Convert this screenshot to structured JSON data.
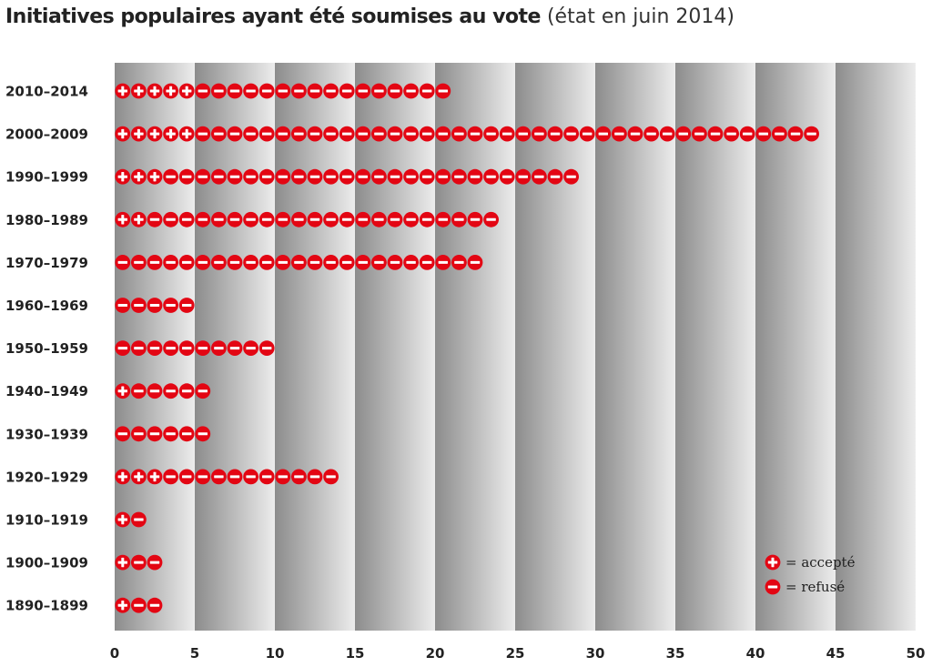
{
  "title": {
    "main": "Initiatives populaires ayant été soumises au vote",
    "sub": "(état en juin 2014)"
  },
  "colors": {
    "accent": "#e30613",
    "band_dark": "#8c8c8c",
    "band_light": "#ececec",
    "text": "#222222"
  },
  "legend": {
    "accepted_label": "= accepté",
    "refused_label": "= refusé",
    "accepted_icon": "plus-circle-icon",
    "refused_icon": "minus-circle-icon"
  },
  "chart_data": {
    "type": "bar",
    "orientation": "horizontal",
    "categories": [
      "2010–2014",
      "2000–2009",
      "1990–1999",
      "1980–1989",
      "1970–1979",
      "1960–1969",
      "1950–1959",
      "1940–1949",
      "1930–1939",
      "1920–1929",
      "1910–1919",
      "1900–1909",
      "1890–1899"
    ],
    "series": [
      {
        "name": "accepté",
        "values": [
          5,
          5,
          3,
          2,
          0,
          0,
          0,
          1,
          0,
          3,
          1,
          1,
          1
        ]
      },
      {
        "name": "refusé",
        "values": [
          16,
          39,
          26,
          22,
          23,
          5,
          10,
          5,
          6,
          11,
          1,
          2,
          2
        ]
      }
    ],
    "xlim": [
      0,
      50
    ],
    "xticks": [
      0,
      5,
      10,
      15,
      20,
      25,
      30,
      35,
      40,
      45,
      50
    ],
    "legend_position": "bottom-right",
    "grid": false
  }
}
